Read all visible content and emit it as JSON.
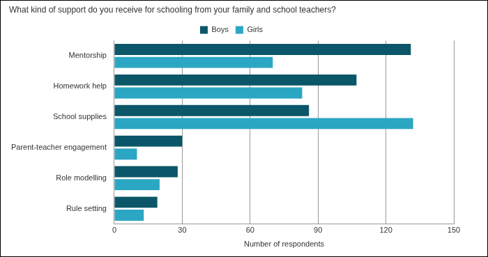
{
  "chart_data": {
    "type": "bar",
    "title": "What kind of support do you receive for schooling from your family and school teachers?",
    "categories": [
      "Mentorship",
      "Homework help",
      "School supplies",
      "Parent-teacher engagement",
      "Role modelling",
      "Rule setting"
    ],
    "series": [
      {
        "name": "Boys",
        "color": "#0b5669",
        "values": [
          131,
          107,
          86,
          30,
          28,
          19
        ]
      },
      {
        "name": "Girls",
        "color": "#2ba6c3",
        "values": [
          70,
          83,
          132,
          10,
          20,
          13
        ]
      }
    ],
    "x_label": "Number of respondents",
    "xlim": [
      0,
      150
    ],
    "xticks": [
      0,
      30,
      60,
      90,
      120,
      150
    ],
    "orientation": "horizontal",
    "grid": true,
    "legend": "top"
  }
}
